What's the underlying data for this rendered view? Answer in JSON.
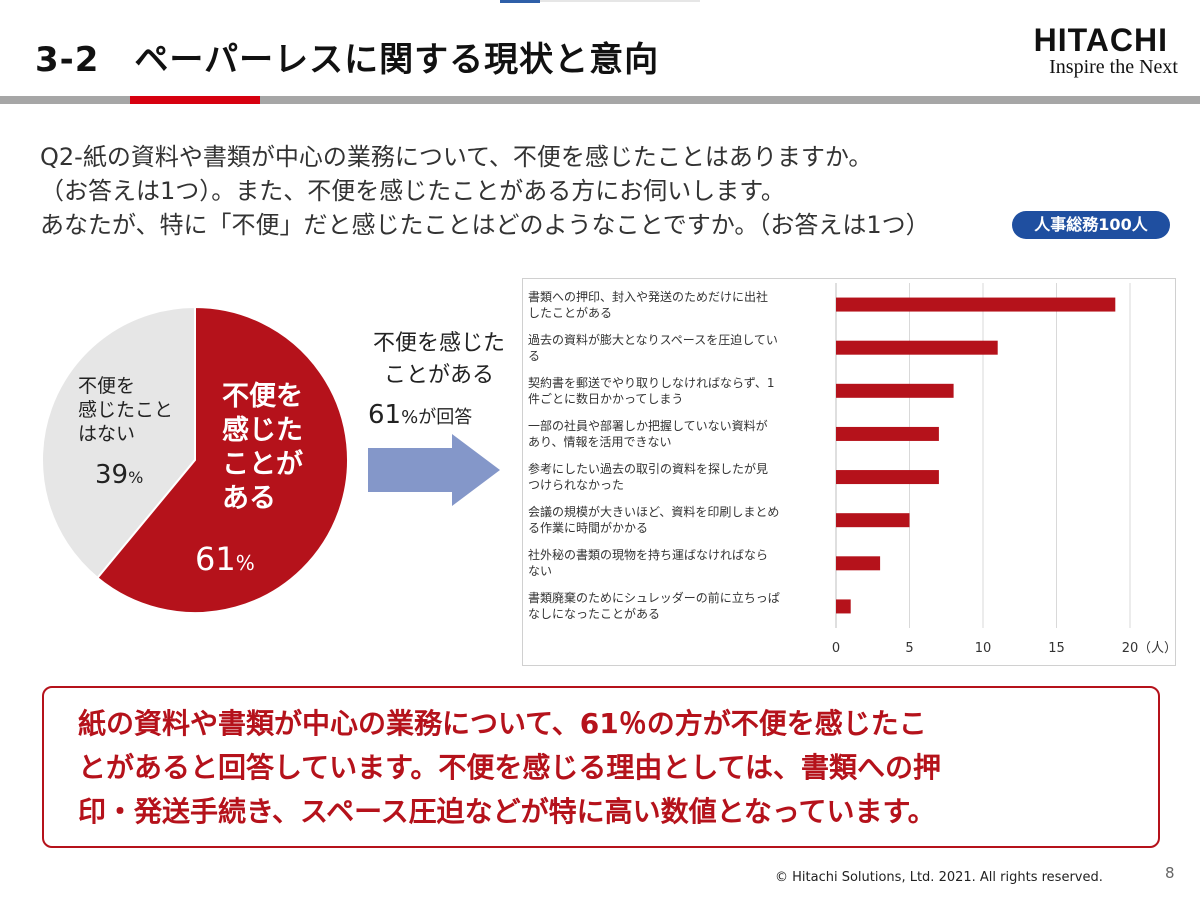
{
  "header": {
    "title": "3-2　ペーパーレスに関する現状と意向",
    "logo_main": "HITACHI",
    "logo_sub": "Inspire the Next"
  },
  "question": {
    "line1": "Q2-紙の資料や書類が中心の業務について、不便を感じたことはありますか。",
    "line2": "（お答えは1つ）。また、不便を感じたことがある方にお伺いします。",
    "line3": "あなたが、特に「不便」だと感じたことはどのようなことですか。（お答えは1つ）",
    "badge": "人事総務100人"
  },
  "pie": {
    "no_label": [
      "不便を",
      "感じたこと",
      "はない"
    ],
    "no_value": "39",
    "yes_label": [
      "不便を",
      "感じた",
      "ことが",
      "ある"
    ],
    "yes_value": "61",
    "percent_sign": "%",
    "yes_color": "#b5121b",
    "no_color": "#e6e6e6"
  },
  "mid": {
    "line1": "不便を感じた",
    "line2": "ことがある",
    "pct": "61",
    "pct_suffix": "%が回答"
  },
  "chart_data": {
    "type": "bar",
    "orientation": "horizontal",
    "categories": [
      [
        "書類への押印、封入や発送のためだけに出社",
        "したことがある"
      ],
      [
        "過去の資料が膨大となりスペースを圧迫してい",
        "る"
      ],
      [
        "契約書を郵送でやり取りしなければならず、1",
        "件ごとに数日かかってしまう"
      ],
      [
        "一部の社員や部署しか把握していない資料が",
        "あり、情報を活用できない"
      ],
      [
        "参考にしたい過去の取引の資料を探したが見",
        "つけられなかった"
      ],
      [
        "会議の規模が大きいほど、資料を印刷しまとめ",
        "る作業に時間がかかる"
      ],
      [
        "社外秘の書類の現物を持ち運ばなければなら",
        "ない"
      ],
      [
        "書類廃棄のためにシュレッダーの前に立ちっぱ",
        "なしになったことがある"
      ]
    ],
    "values": [
      19,
      11,
      8,
      7,
      7,
      5,
      3,
      1
    ],
    "xlim": [
      0,
      20
    ],
    "xticks": [
      "0",
      "5",
      "10",
      "15",
      "20"
    ],
    "unit": "（人）",
    "bar_color": "#b5121b",
    "grid": true
  },
  "conclusion": {
    "line1": "紙の資料や書類が中心の業務について、61％の方が不便を感じたこ",
    "line2": "とがあると回答しています。不便を感じる理由としては、書類への押",
    "line3": "印・発送手続き、スペース圧迫などが特に高い数値となっています。"
  },
  "footer": {
    "copyright": "© Hitachi Solutions, Ltd. 2021. All rights reserved.",
    "page": "8"
  }
}
